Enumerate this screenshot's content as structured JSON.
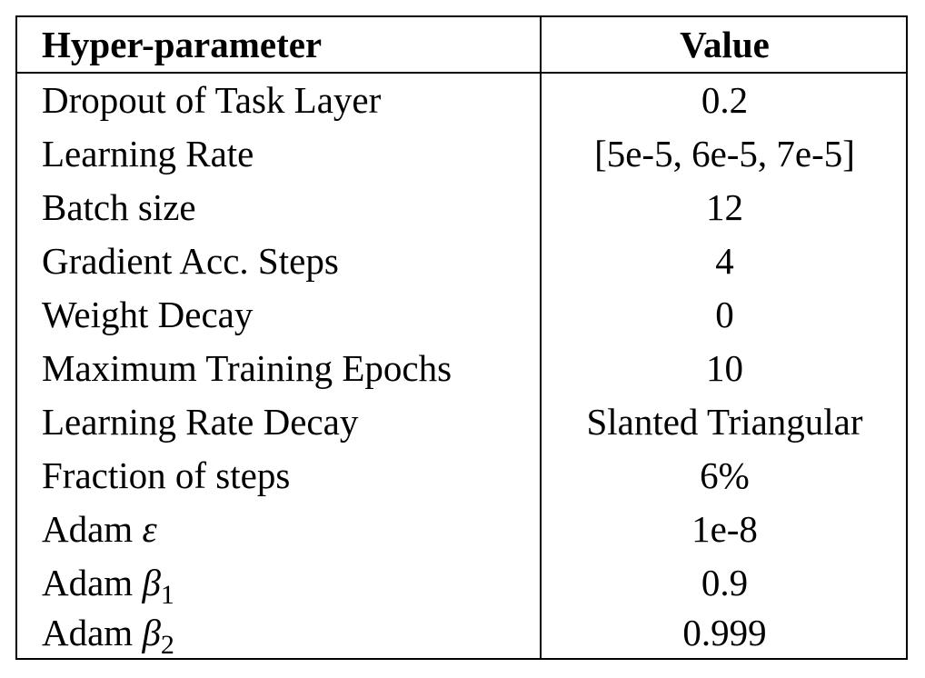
{
  "table": {
    "headers": [
      "Hyper-parameter",
      "Value"
    ],
    "rows": [
      {
        "name": "Dropout of Task Layer",
        "value": "0.2"
      },
      {
        "name": "Learning Rate",
        "value": "[5e-5, 6e-5, 7e-5]"
      },
      {
        "name": "Batch size",
        "value": "12"
      },
      {
        "name": "Gradient Acc. Steps",
        "value": "4"
      },
      {
        "name": "Weight Decay",
        "value": "0"
      },
      {
        "name": "Maximum Training Epochs",
        "value": "10"
      },
      {
        "name": "Learning Rate Decay",
        "value": "Slanted Triangular"
      },
      {
        "name": "Fraction of steps",
        "value": "6%"
      },
      {
        "name": "Adam",
        "symbol": "ε",
        "value": "1e-8"
      },
      {
        "name": "Adam",
        "symbol": "β",
        "subscript": "1",
        "value": "0.9"
      },
      {
        "name": "Adam",
        "symbol": "β",
        "subscript": "2",
        "value": "0.999"
      }
    ]
  }
}
